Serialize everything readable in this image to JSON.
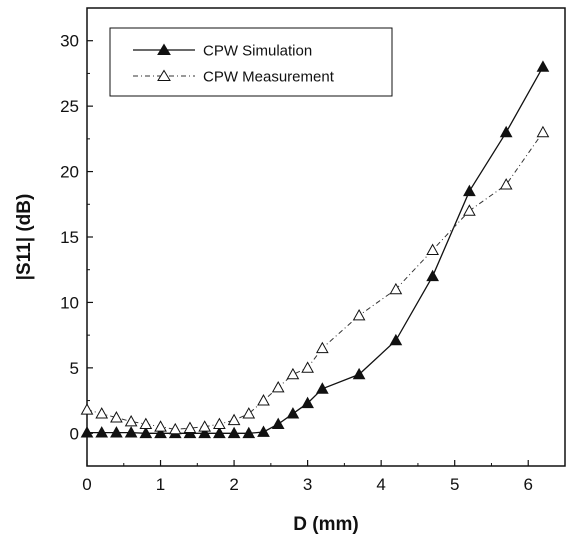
{
  "chart_data": {
    "type": "line",
    "title": "",
    "xlabel": "D (mm)",
    "ylabel": "|S11| (dB)",
    "xlim": [
      0,
      6.5
    ],
    "ylim": [
      -2.5,
      32.5
    ],
    "xticks": [
      0,
      1,
      2,
      3,
      4,
      5,
      6
    ],
    "yticks": [
      0,
      5,
      10,
      15,
      20,
      25,
      30
    ],
    "x_tick_labels": [
      "0",
      "1",
      "2",
      "3",
      "4",
      "5",
      "6"
    ],
    "y_tick_labels": [
      "0",
      "5",
      "10",
      "15",
      "20",
      "25",
      "30"
    ],
    "grid": false,
    "legend_position": "top-left",
    "series": [
      {
        "name": "CPW Simulation",
        "marker": "filled-triangle",
        "line_style": "solid",
        "color": "#111111",
        "x": [
          0,
          0.2,
          0.4,
          0.6,
          0.8,
          1.0,
          1.2,
          1.4,
          1.6,
          1.8,
          2.0,
          2.2,
          2.4,
          2.6,
          2.8,
          3.0,
          3.2,
          3.7,
          4.2,
          4.7,
          5.2,
          5.7,
          6.2
        ],
        "y": [
          0.05,
          0.05,
          0.05,
          0.05,
          0.0,
          0.0,
          0.0,
          0.0,
          0.0,
          0.0,
          0.0,
          0.0,
          0.1,
          0.7,
          1.5,
          2.3,
          3.4,
          4.5,
          7.1,
          12.0,
          18.5,
          23.0,
          28.0
        ]
      },
      {
        "name": "CPW Measurement",
        "marker": "open-triangle",
        "line_style": "dash-dot",
        "color": "#333333",
        "x": [
          0,
          0.2,
          0.4,
          0.6,
          0.8,
          1.0,
          1.2,
          1.4,
          1.6,
          1.8,
          2.0,
          2.2,
          2.4,
          2.6,
          2.8,
          3.0,
          3.2,
          3.7,
          4.2,
          4.7,
          5.2,
          5.7,
          6.2
        ],
        "y": [
          1.8,
          1.5,
          1.2,
          0.9,
          0.7,
          0.5,
          0.3,
          0.4,
          0.5,
          0.7,
          1.0,
          1.5,
          2.5,
          3.5,
          4.5,
          5.0,
          6.5,
          9.0,
          11.0,
          14.0,
          17.0,
          19.0,
          23.0
        ]
      }
    ]
  }
}
